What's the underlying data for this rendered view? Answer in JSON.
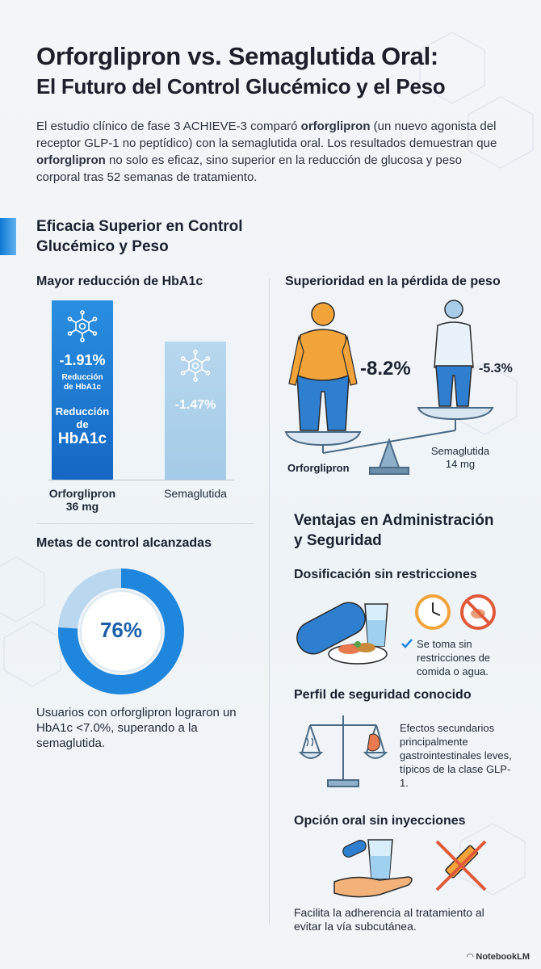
{
  "header": {
    "title_line1": "Orforglipron vs. Semaglutida Oral:",
    "title_line2": "El Futuro del Control Glucémico y el Peso",
    "intro_p1": "El estudio clínico de fase 3 ACHIEVE-3 comparó ",
    "intro_b1": "orforglipron",
    "intro_p2": " (un nuevo agonista del receptor GLP-1 no peptídico) con la semaglutida oral. Los resultados demuestran que ",
    "intro_b2": "orforglipron",
    "intro_p3": " no solo es eficaz, sino superior en la reducción de glucosa y peso corporal tras 52 semanas de tratamiento."
  },
  "section1": {
    "title": "Eficacia Superior en Control Glucémico y Peso"
  },
  "hba1c": {
    "subtitle": "Mayor reducción de HbA1c",
    "bar1_value": "-1.91%",
    "bar1_small": "Reducción de HbA1c",
    "bar1_big_line1": "Reducción",
    "bar1_big_line2": "de",
    "bar1_big_line3": "HbA1c",
    "bar2_value": "-1.47%",
    "cat1_line1": "Orforglipron",
    "cat1_line2": "36 mg",
    "cat2": "Semaglutida"
  },
  "chart_data": {
    "type": "bar",
    "categories": [
      "Orforglipron 36 mg",
      "Semaglutida"
    ],
    "values": [
      -1.91,
      -1.47
    ],
    "title": "Mayor reducción de HbA1c",
    "xlabel": "",
    "ylabel": ""
  },
  "weight": {
    "subtitle": "Superioridad en la pérdida de peso",
    "orfo_value": "-8.2%",
    "sema_value": "-5.3%",
    "orfo_label": "Orforglipron",
    "sema_label_line1": "Semaglutida",
    "sema_label_line2": "14 mg",
    "orfo_percent": 8.2,
    "sema_percent": 5.3
  },
  "goals": {
    "subtitle": "Metas de control alcanzadas",
    "percent_label": "76%",
    "percent": 76,
    "caption": "Usuarios con orforglipron lograron un HbA1c <7.0%, superando a la semaglutida."
  },
  "section2": {
    "title_line1": "Ventajas en Administración",
    "title_line2": "y Seguridad",
    "dosing_title": "Dosificación sin restricciones",
    "dosing_text": "Se toma sin restricciones de comida o agua.",
    "safety_title": "Perfil de seguridad conocido",
    "safety_text": "Efectos secundarios principalmente gastrointestinales leves, típicos de la clase GLP-1.",
    "oral_title": "Opción oral sin inyecciones",
    "oral_text": "Facilita la adherencia al tratamiento al evitar la vía subcutánea."
  },
  "footer": {
    "brand": "NotebookLM"
  },
  "colors": {
    "primary_blue": "#1467c4",
    "light_blue": "#a4cbe7",
    "orange": "#f2a33a",
    "accent_red": "#e05a3a"
  }
}
